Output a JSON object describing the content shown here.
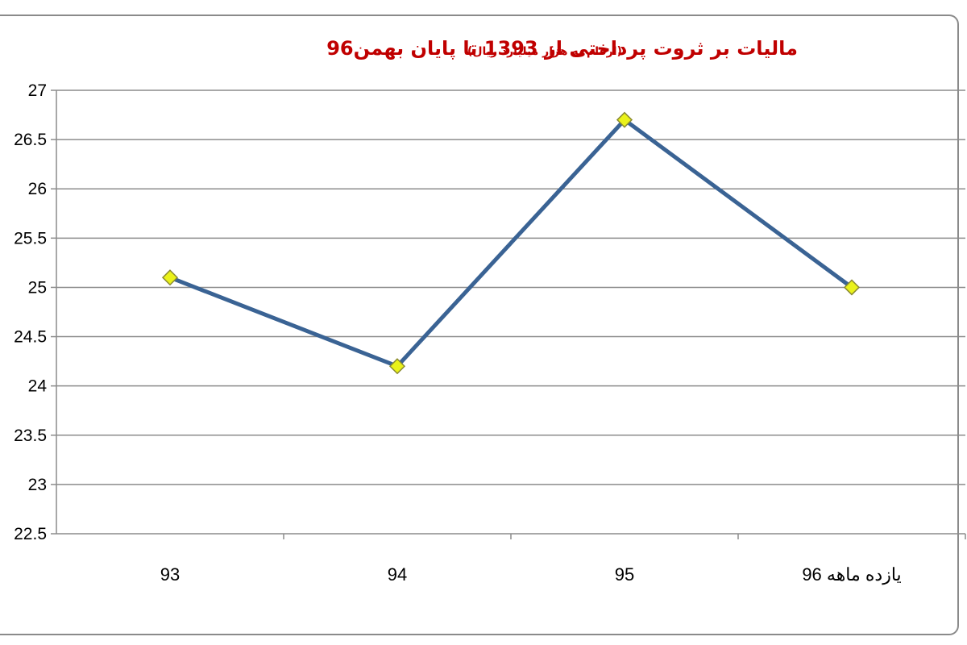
{
  "chart_data": {
    "type": "line",
    "title": "مالیات بر ثروت پرداختی از 1393 تا پایان بهمن96",
    "subtitle": "(ارقام به هزار میلیارد ریال)",
    "categories": [
      "93",
      "94",
      "95",
      "یازده ماهه 96"
    ],
    "values": [
      25.1,
      24.2,
      26.7,
      25.0
    ],
    "yticks": [
      "22.5",
      "23",
      "23.5",
      "24",
      "24.5",
      "25",
      "25.5",
      "26",
      "26.5",
      "27"
    ],
    "ylim": [
      22.5,
      27
    ],
    "xlabel": "",
    "ylabel": "",
    "grid": true,
    "legend": "none",
    "line_color": "#3a6394",
    "marker_color": "#eaf21a",
    "marker_stroke": "#8a8a30",
    "grid_color": "#8c8c8c",
    "title_color": "#c00000"
  }
}
